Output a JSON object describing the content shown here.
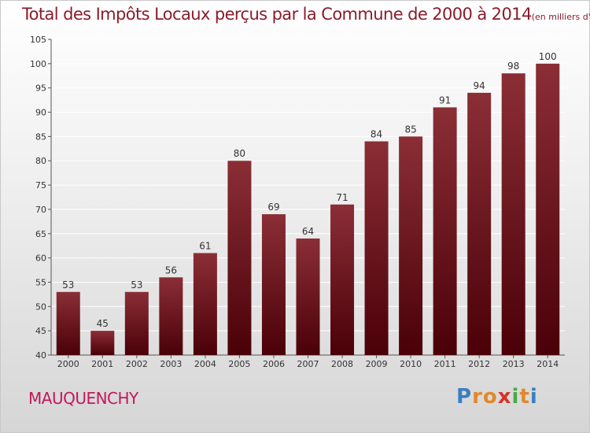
{
  "header": {
    "title": "Total des Impôts Locaux perçus par la Commune de 2000 à 2014",
    "unit": "(en milliers d'€)"
  },
  "footer": {
    "commune": "MAUQUENCHY",
    "logo_letters": [
      "P",
      "r",
      "o",
      "x",
      "i",
      "t",
      "i"
    ],
    "logo_colors": [
      "#3a7fc1",
      "#e0892a",
      "#e0892a",
      "#d8322a",
      "#4aa84a",
      "#e0892a",
      "#3a7fc1"
    ]
  },
  "chart_data": {
    "type": "bar",
    "title": "Total des Impôts Locaux perçus par la Commune de 2000 à 2014",
    "xlabel": "",
    "ylabel": "",
    "categories": [
      "2000",
      "2001",
      "2002",
      "2003",
      "2004",
      "2005",
      "2006",
      "2007",
      "2008",
      "2009",
      "2010",
      "2011",
      "2012",
      "2013",
      "2014"
    ],
    "values": [
      53,
      45,
      53,
      56,
      61,
      80,
      69,
      64,
      71,
      84,
      85,
      91,
      94,
      98,
      100
    ],
    "ylim": [
      40,
      105
    ],
    "yticks": [
      40,
      45,
      50,
      55,
      60,
      65,
      70,
      75,
      80,
      85,
      90,
      95,
      100,
      105
    ],
    "grid": true,
    "bar_color_top": "#8b2e36",
    "bar_color_bottom": "#4a0008"
  }
}
